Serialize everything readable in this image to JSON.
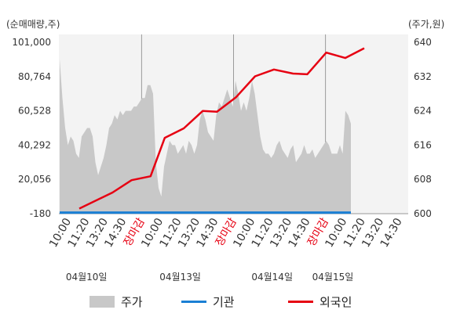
{
  "chart_data": {
    "type": "line",
    "left_axis": {
      "label": "(순매매량,주)",
      "ticks": [
        "101,000",
        "80,764",
        "60,528",
        "40,292",
        "20,056",
        "-180"
      ],
      "range": [
        -180,
        101000
      ]
    },
    "right_axis": {
      "label": "(주가,원)",
      "ticks": [
        "640",
        "632",
        "624",
        "616",
        "608",
        "600"
      ],
      "range": [
        600,
        640
      ]
    },
    "x_ticks": [
      {
        "label": "10:00",
        "red": false
      },
      {
        "label": "11:20",
        "red": false
      },
      {
        "label": "13:20",
        "red": false
      },
      {
        "label": "14:30",
        "red": false
      },
      {
        "label": "장마감",
        "red": true
      },
      {
        "label": "10:00",
        "red": false
      },
      {
        "label": "11:20",
        "red": false
      },
      {
        "label": "13:20",
        "red": false
      },
      {
        "label": "14:30",
        "red": false
      },
      {
        "label": "장마감",
        "red": true
      },
      {
        "label": "10:00",
        "red": false
      },
      {
        "label": "11:20",
        "red": false
      },
      {
        "label": "13:20",
        "red": false
      },
      {
        "label": "14:30",
        "red": false
      },
      {
        "label": "장마감",
        "red": true
      },
      {
        "label": "10:00",
        "red": false
      },
      {
        "label": "11:20",
        "red": false
      },
      {
        "label": "13:20",
        "red": false
      },
      {
        "label": "14:30",
        "red": false
      }
    ],
    "dates": [
      "04월10일",
      "04월13일",
      "04월14일",
      "04월15일"
    ],
    "legend": [
      {
        "name": "주가",
        "color": "#c8c8c8",
        "shape": "area"
      },
      {
        "name": "기관",
        "color": "#1a7fd4",
        "shape": "line"
      },
      {
        "name": "외국인",
        "color": "#e60012",
        "shape": "line"
      }
    ],
    "series": {
      "price": [
        636,
        627,
        620,
        616,
        618,
        617,
        614,
        613,
        618,
        619,
        620,
        620,
        618,
        612,
        609,
        611,
        613,
        616,
        620,
        621,
        623,
        622,
        624,
        623,
        624,
        624,
        624,
        625,
        625,
        626,
        627,
        627,
        630,
        630,
        628,
        612,
        606,
        604,
        611,
        614,
        617,
        616,
        616,
        614,
        615,
        616,
        614,
        617,
        616,
        614,
        616,
        622,
        624,
        622,
        619,
        618,
        617,
        623,
        626,
        625,
        627,
        629,
        627,
        625,
        631,
        628,
        624,
        626,
        624,
        627,
        631,
        628,
        623,
        618,
        615,
        614,
        614,
        613,
        614,
        616,
        617,
        615,
        614,
        613,
        615,
        616,
        612,
        613,
        614,
        616,
        614,
        614,
        615,
        613,
        614,
        615,
        616,
        617,
        616,
        614,
        614,
        614,
        616,
        614,
        624,
        623,
        621
      ],
      "institution": [
        [
          0,
          0
        ],
        [
          106,
          0
        ]
      ],
      "foreign": [
        [
          0,
          2800
        ],
        [
          7,
          12300
        ],
        [
          11,
          19600
        ],
        [
          15,
          21900
        ],
        [
          18,
          44600
        ],
        [
          22,
          50200
        ],
        [
          26,
          60500
        ],
        [
          29,
          60000
        ],
        [
          33,
          68500
        ],
        [
          37,
          80900
        ],
        [
          41,
          84900
        ],
        [
          45,
          82500
        ],
        [
          48,
          82100
        ],
        [
          52,
          94900
        ],
        [
          56,
          91700
        ],
        [
          60,
          97500
        ]
      ]
    }
  }
}
